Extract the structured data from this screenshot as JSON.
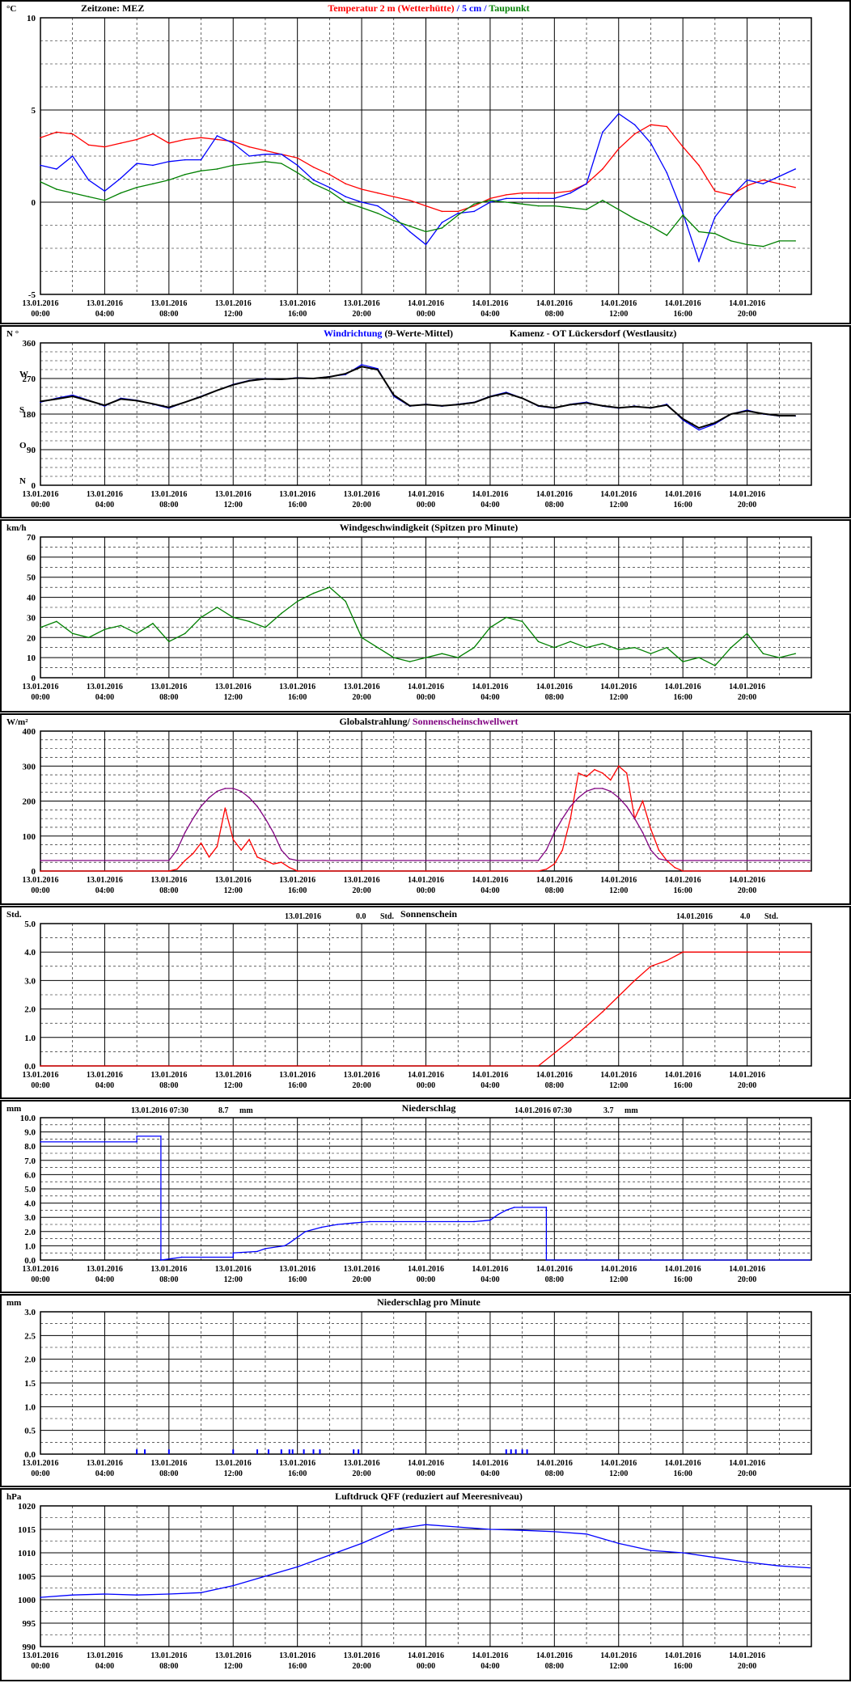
{
  "page": {
    "timezone": "Zeitzone: MEZ",
    "station": "Kamenz - OT Lückersdorf (Westlausitz)"
  },
  "x_ticks": [
    {
      "date": "13.01.2016",
      "time": "00:00"
    },
    {
      "date": "13.01.2016",
      "time": "04:00"
    },
    {
      "date": "13.01.2016",
      "time": "08:00"
    },
    {
      "date": "13.01.2016",
      "time": "12:00"
    },
    {
      "date": "13.01.2016",
      "time": "16:00"
    },
    {
      "date": "13.01.2016",
      "time": "20:00"
    },
    {
      "date": "14.01.2016",
      "time": "00:00"
    },
    {
      "date": "14.01.2016",
      "time": "04:00"
    },
    {
      "date": "14.01.2016",
      "time": "08:00"
    },
    {
      "date": "14.01.2016",
      "time": "12:00"
    },
    {
      "date": "14.01.2016",
      "time": "16:00"
    },
    {
      "date": "14.01.2016",
      "time": "20:00"
    }
  ],
  "chart_data": [
    {
      "type": "line",
      "unit": "°C",
      "title": [
        {
          "text": "Temperatur 2 m (Wetterhütte)",
          "color": "#ff0000"
        },
        {
          "text": " / ",
          "color": "#0000ff"
        },
        {
          "text": "5 cm",
          "color": "#0000ff"
        },
        {
          "text": " / ",
          "color": "#0000ff"
        },
        {
          "text": "Taupunkt",
          "color": "#008000"
        }
      ],
      "ylim": [
        -5,
        10
      ],
      "yticks": [
        "-5",
        "0",
        "5",
        "10"
      ],
      "x_hours": [
        0,
        1,
        2,
        3,
        4,
        5,
        6,
        7,
        8,
        9,
        10,
        11,
        12,
        13,
        14,
        15,
        16,
        17,
        18,
        19,
        20,
        21,
        22,
        23,
        24,
        25,
        26,
        27,
        28,
        29,
        30,
        31,
        32,
        33,
        34,
        35,
        36,
        37,
        38,
        39,
        40,
        41,
        42,
        43,
        44,
        45,
        46,
        47
      ],
      "series": [
        {
          "name": "Temperatur 2 m (Wetterhütte)",
          "color": "#ff0000",
          "values": [
            3.5,
            3.8,
            3.7,
            3.1,
            3.0,
            3.2,
            3.4,
            3.7,
            3.2,
            3.4,
            3.5,
            3.4,
            3.3,
            3.0,
            2.8,
            2.6,
            2.4,
            1.9,
            1.5,
            1.0,
            0.7,
            0.5,
            0.3,
            0.1,
            -0.2,
            -0.5,
            -0.5,
            -0.2,
            0.2,
            0.4,
            0.5,
            0.5,
            0.5,
            0.6,
            1.0,
            1.8,
            2.9,
            3.7,
            4.2,
            4.1,
            3.0,
            2.0,
            0.6,
            0.4,
            0.9,
            1.2,
            1.0,
            0.8
          ]
        },
        {
          "name": "5 cm",
          "color": "#0000ff",
          "values": [
            2.0,
            1.8,
            2.5,
            1.2,
            0.6,
            1.3,
            2.1,
            2.0,
            2.2,
            2.3,
            2.3,
            3.6,
            3.2,
            2.5,
            2.6,
            2.6,
            2.0,
            1.2,
            0.8,
            0.3,
            0.0,
            -0.2,
            -0.8,
            -1.6,
            -2.3,
            -1.1,
            -0.6,
            -0.5,
            0.0,
            0.2,
            0.2,
            0.2,
            0.2,
            0.5,
            1.0,
            3.8,
            4.8,
            4.2,
            3.2,
            1.6,
            -0.6,
            -3.2,
            -0.8,
            0.3,
            1.2,
            1.0,
            1.4,
            1.8
          ]
        },
        {
          "name": "Taupunkt",
          "color": "#008000",
          "values": [
            1.1,
            0.7,
            0.5,
            0.3,
            0.1,
            0.5,
            0.8,
            1.0,
            1.2,
            1.5,
            1.7,
            1.8,
            2.0,
            2.1,
            2.2,
            2.1,
            1.6,
            1.0,
            0.6,
            0.0,
            -0.3,
            -0.6,
            -1.0,
            -1.3,
            -1.6,
            -1.4,
            -0.7,
            -0.1,
            0.1,
            0.0,
            -0.1,
            -0.2,
            -0.2,
            -0.3,
            -0.4,
            0.1,
            -0.4,
            -0.9,
            -1.3,
            -1.8,
            -0.7,
            -1.6,
            -1.7,
            -2.1,
            -2.3,
            -2.4,
            -2.1,
            -2.1
          ]
        }
      ]
    },
    {
      "type": "line",
      "unit": "N °",
      "title": [
        {
          "text": "Windrichtung",
          "color": "#0000ff"
        },
        {
          "text": " (9-Werte-Mittel)",
          "color": "#000000"
        }
      ],
      "ylim": [
        0,
        360
      ],
      "yticks": [
        "0",
        "90",
        "180",
        "270",
        "360"
      ],
      "ylabels_dir": [
        {
          "text": "N",
          "value": 0
        },
        {
          "text": "O",
          "value": 90
        },
        {
          "text": "S",
          "value": 180
        },
        {
          "text": "W",
          "value": 270
        }
      ],
      "x_hours": [
        0,
        1,
        2,
        3,
        4,
        5,
        6,
        7,
        8,
        9,
        10,
        11,
        12,
        13,
        14,
        15,
        16,
        17,
        18,
        19,
        20,
        21,
        22,
        23,
        24,
        25,
        26,
        27,
        28,
        29,
        30,
        31,
        32,
        33,
        34,
        35,
        36,
        37,
        38,
        39,
        40,
        41,
        42,
        43,
        44,
        45,
        46,
        47
      ],
      "series": [
        {
          "name": "Windrichtung",
          "color": "#0000ff",
          "values": [
            210,
            220,
            228,
            215,
            200,
            220,
            215,
            205,
            195,
            210,
            225,
            240,
            255,
            265,
            270,
            268,
            272,
            270,
            275,
            280,
            305,
            295,
            225,
            200,
            205,
            200,
            205,
            210,
            225,
            235,
            220,
            200,
            195,
            205,
            210,
            200,
            195,
            200,
            195,
            205,
            165,
            140,
            155,
            180,
            190,
            180,
            175,
            175
          ]
        },
        {
          "name": "9-Werte-Mittel",
          "color": "#000000",
          "values": [
            212,
            218,
            225,
            214,
            202,
            218,
            214,
            206,
            197,
            210,
            224,
            240,
            254,
            264,
            269,
            268,
            271,
            270,
            274,
            282,
            300,
            292,
            228,
            201,
            204,
            201,
            204,
            209,
            224,
            233,
            220,
            201,
            196,
            204,
            208,
            201,
            196,
            199,
            196,
            203,
            168,
            145,
            158,
            180,
            188,
            181,
            176,
            176
          ]
        }
      ]
    },
    {
      "type": "line",
      "unit": "km/h",
      "title": [
        {
          "text": "Windgeschwindigkeit (Spitzen pro Minute)",
          "color": "#000000"
        }
      ],
      "ylim": [
        0,
        70
      ],
      "yticks": [
        "0",
        "10",
        "20",
        "30",
        "40",
        "50",
        "60",
        "70"
      ],
      "x_hours": [
        0,
        1,
        2,
        3,
        4,
        5,
        6,
        7,
        8,
        9,
        10,
        11,
        12,
        13,
        14,
        15,
        16,
        17,
        18,
        19,
        20,
        21,
        22,
        23,
        24,
        25,
        26,
        27,
        28,
        29,
        30,
        31,
        32,
        33,
        34,
        35,
        36,
        37,
        38,
        39,
        40,
        41,
        42,
        43,
        44,
        45,
        46,
        47
      ],
      "series": [
        {
          "name": "Windgeschwindigkeit",
          "color": "#008000",
          "values": [
            25,
            28,
            22,
            20,
            24,
            26,
            22,
            27,
            18,
            22,
            30,
            35,
            30,
            28,
            25,
            32,
            38,
            42,
            45,
            38,
            20,
            15,
            10,
            8,
            10,
            12,
            10,
            15,
            25,
            30,
            28,
            18,
            15,
            18,
            15,
            17,
            14,
            15,
            12,
            15,
            8,
            10,
            6,
            15,
            22,
            12,
            10,
            12
          ]
        }
      ]
    },
    {
      "type": "line",
      "unit": "W/m²",
      "title": [
        {
          "text": "Globalstrahlung",
          "color": "#000000"
        },
        {
          "text": "/ ",
          "color": "#000000"
        },
        {
          "text": "Sonnenscheinschwellwert",
          "color": "#800080"
        }
      ],
      "ylim": [
        0,
        400
      ],
      "yticks": [
        "0",
        "100",
        "200",
        "300",
        "400"
      ],
      "series": [
        {
          "name": "Globalstrahlung",
          "color": "#ff0000",
          "x_hours": [
            0,
            8,
            8.5,
            9,
            9.5,
            10,
            10.5,
            11,
            11.5,
            12,
            12.5,
            13,
            13.5,
            14,
            14.5,
            15,
            15.5,
            16,
            24,
            31,
            31.5,
            32,
            32.5,
            33,
            33.5,
            34,
            34.5,
            35,
            35.5,
            36,
            36.5,
            37,
            37.5,
            38,
            38.5,
            39,
            39.5,
            40,
            40.5,
            41,
            47.9
          ],
          "values": [
            0,
            0,
            5,
            30,
            50,
            80,
            40,
            70,
            180,
            90,
            60,
            90,
            40,
            30,
            20,
            25,
            10,
            0,
            0,
            0,
            5,
            20,
            60,
            150,
            280,
            270,
            290,
            280,
            260,
            300,
            280,
            150,
            200,
            120,
            60,
            30,
            10,
            0,
            0,
            0,
            0
          ]
        },
        {
          "name": "Sonnenscheinschwellwert",
          "color": "#800080",
          "x_hours": [
            0,
            8,
            8.5,
            9,
            9.5,
            10,
            10.5,
            11,
            11.5,
            12,
            12.5,
            13,
            13.5,
            14,
            14.5,
            15,
            15.5,
            16,
            31,
            31.5,
            32,
            32.5,
            33,
            33.5,
            34,
            34.5,
            35,
            35.5,
            36,
            36.5,
            37,
            37.5,
            38,
            38.5,
            39,
            39.5,
            40,
            47.9
          ],
          "values": [
            30,
            30,
            60,
            110,
            150,
            185,
            210,
            228,
            236,
            236,
            228,
            210,
            185,
            150,
            110,
            60,
            35,
            30,
            30,
            60,
            110,
            150,
            185,
            210,
            228,
            236,
            236,
            228,
            210,
            185,
            150,
            110,
            60,
            35,
            30,
            30,
            30,
            30
          ]
        }
      ]
    },
    {
      "type": "line",
      "unit": "Std.",
      "title": [
        {
          "text": "Sonnenschein",
          "color": "#000000"
        }
      ],
      "annotations": [
        {
          "date": "13.01.2016",
          "value": "0.0",
          "unit": "Std."
        },
        {
          "date": "14.01.2016",
          "value": "4.0",
          "unit": "Std."
        }
      ],
      "ylim": [
        0,
        5
      ],
      "yticks": [
        "0.0",
        "1.0",
        "2.0",
        "3.0",
        "4.0",
        "5.0"
      ],
      "series": [
        {
          "name": "Sonnenschein",
          "color": "#ff0000",
          "x_hours": [
            0,
            24,
            31,
            33,
            35,
            37,
            38,
            39,
            40,
            47.9
          ],
          "values": [
            0,
            0,
            0,
            0.9,
            1.9,
            3.0,
            3.5,
            3.7,
            4.0,
            4.0
          ]
        }
      ]
    },
    {
      "type": "line",
      "unit": "mm",
      "title": [
        {
          "text": "Niederschlag",
          "color": "#000000"
        }
      ],
      "annotations": [
        {
          "date": "13.01.2016 07:30",
          "value": "8.7",
          "unit": "mm"
        },
        {
          "date": "14.01.2016 07:30",
          "value": "3.7",
          "unit": "mm"
        }
      ],
      "ylim": [
        0,
        10
      ],
      "yticks": [
        "0.0",
        "1.0",
        "2.0",
        "3.0",
        "4.0",
        "5.0",
        "6.0",
        "7.0",
        "8.0",
        "9.0",
        "10.0"
      ],
      "series": [
        {
          "name": "Niederschlag",
          "color": "#0000ff",
          "x_hours": [
            0,
            6,
            6,
            7.5,
            7.5,
            8.2,
            8.8,
            12,
            12,
            13.5,
            14,
            15.2,
            15.5,
            16.5,
            17.5,
            18.5,
            19.5,
            20.5,
            22,
            26,
            27,
            28,
            28.5,
            29,
            29.5,
            31.5,
            31.5,
            47.9
          ],
          "values": [
            8.3,
            8.3,
            8.7,
            8.7,
            0.0,
            0.1,
            0.2,
            0.2,
            0.5,
            0.6,
            0.8,
            1.0,
            1.2,
            2.0,
            2.3,
            2.5,
            2.6,
            2.7,
            2.7,
            2.7,
            2.7,
            2.8,
            3.2,
            3.5,
            3.7,
            3.7,
            0.0,
            0.0
          ]
        }
      ]
    },
    {
      "type": "bar",
      "unit": "mm",
      "title": [
        {
          "text": "Niederschlag pro Minute",
          "color": "#000000"
        }
      ],
      "ylim": [
        0,
        3
      ],
      "yticks": [
        "0.0",
        "0.5",
        "1.0",
        "1.5",
        "2.0",
        "2.5",
        "3.0"
      ],
      "series": [
        {
          "name": "Niederschlag pro Minute",
          "color": "#0000ff",
          "x_hours": [
            6.0,
            6.5,
            8.0,
            12.0,
            13.5,
            14.2,
            15.0,
            15.5,
            15.7,
            16.4,
            17.0,
            17.4,
            19.5,
            19.8,
            29.0,
            29.3,
            29.6,
            30.0,
            30.3
          ],
          "values": [
            0.1,
            0.1,
            0.1,
            0.1,
            0.1,
            0.1,
            0.1,
            0.1,
            0.1,
            0.1,
            0.1,
            0.1,
            0.1,
            0.1,
            0.1,
            0.1,
            0.1,
            0.1,
            0.1
          ]
        }
      ]
    },
    {
      "type": "line",
      "unit": "hPa",
      "title": [
        {
          "text": "Luftdruck QFF (reduziert auf Meeresniveau)",
          "color": "#000000"
        }
      ],
      "ylim": [
        990,
        1020
      ],
      "yticks": [
        "990",
        "995",
        "1000",
        "1005",
        "1010",
        "1015",
        "1020"
      ],
      "x_hours": [
        0,
        2,
        4,
        6,
        8,
        10,
        12,
        14,
        16,
        18,
        20,
        22,
        24,
        26,
        28,
        30,
        32,
        34,
        36,
        38,
        40,
        42,
        44,
        46,
        47.9
      ],
      "series": [
        {
          "name": "Luftdruck QFF",
          "color": "#0000ff",
          "values": [
            1000.5,
            1001.0,
            1001.2,
            1001.0,
            1001.2,
            1001.5,
            1003.0,
            1005.0,
            1007.0,
            1009.5,
            1012.0,
            1015.0,
            1016.0,
            1015.5,
            1015.0,
            1014.8,
            1014.5,
            1014.0,
            1012.0,
            1010.5,
            1010.0,
            1009.0,
            1008.0,
            1007.2,
            1006.8
          ]
        }
      ]
    }
  ]
}
